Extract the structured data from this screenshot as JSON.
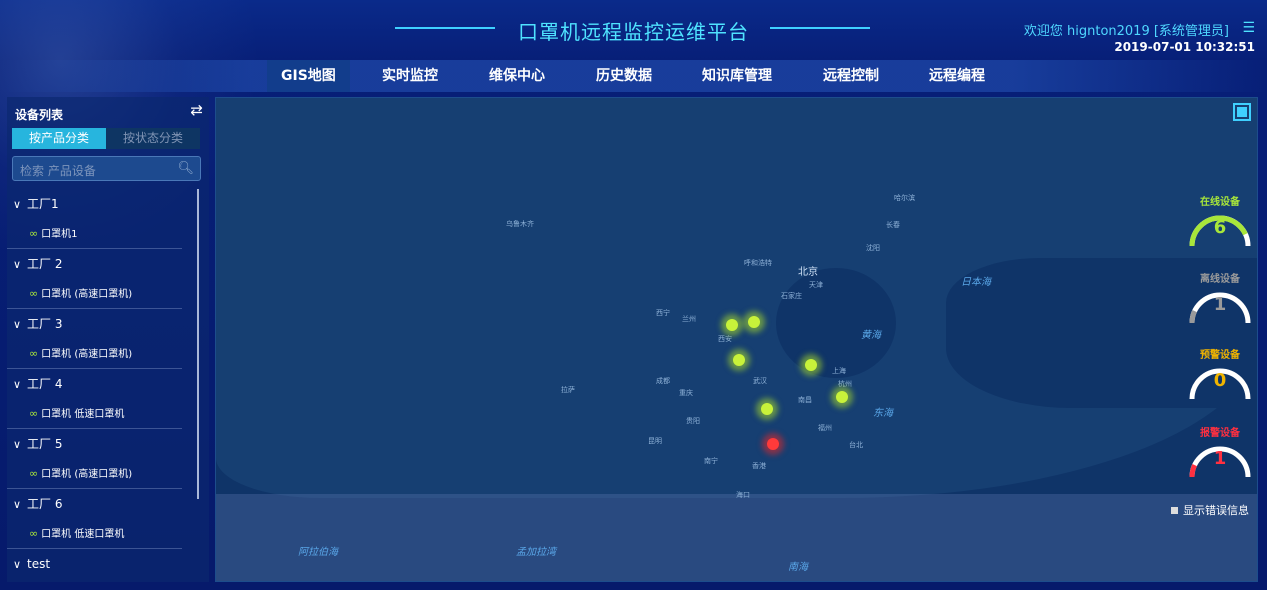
{
  "header": {
    "title": "口罩机远程监控运维平台",
    "welcome": "欢迎您  hignton2019 [系统管理员]",
    "datetime": "2019-07-01 10:32:51"
  },
  "nav": [
    "GIS地图",
    "实时监控",
    "维保中心",
    "历史数据",
    "知识库管理",
    "远程控制",
    "远程编程"
  ],
  "sidebar": {
    "title": "设备列表",
    "tabs": [
      "按产品分类",
      "按状态分类"
    ],
    "search_placeholder": "检索 产品设备",
    "groups": [
      {
        "name": "工厂1",
        "device": "口罩机1"
      },
      {
        "name": "工厂 2",
        "device": "口罩机 (高速口罩机)"
      },
      {
        "name": "工厂 3",
        "device": "口罩机 (高速口罩机)"
      },
      {
        "name": "工厂 4",
        "device": "口罩机 低速口罩机"
      },
      {
        "name": "工厂 5",
        "device": "口罩机 (高速口罩机)"
      },
      {
        "name": "工厂 6",
        "device": "口罩机 低速口罩机"
      },
      {
        "name": "test",
        "device": null
      }
    ]
  },
  "map": {
    "labels": {
      "beijing": "北京",
      "tianjin": "天津",
      "shijiazhuang": "石家庄",
      "huanghai": "黄海",
      "donghai": "东海",
      "ribenhai": "日本海",
      "nanhai": "南海",
      "alabo": "阿拉伯海",
      "mengjiala": "孟加拉湾",
      "wulumuqi": "乌鲁木齐",
      "lanzhou": "兰州",
      "xining": "西宁",
      "xian": "西安",
      "chengdu": "成都",
      "chongqing": "重庆",
      "wuhan": "武汉",
      "hangzhou": "杭州",
      "shanghai": "上海",
      "nanchang": "南昌",
      "guiyang": "贵阳",
      "kunming": "昆明",
      "nanning": "南宁",
      "xianggang": "香港",
      "taibei": "台北",
      "lasa": "拉萨",
      "haerbin": "哈尔滨",
      "changchun": "长春",
      "shenyang": "沈阳",
      "huhehaote": "呼和浩特",
      "fuzhou": "福州",
      "haikou": "海口"
    },
    "show_error_label": "显示错误信息",
    "marker_colors": {
      "online": "#c8f23a",
      "alarm": "#ff3a3a"
    }
  },
  "stats": [
    {
      "label": "在线设备",
      "value": "6",
      "color": "#a8e63a",
      "fraction": 0.86
    },
    {
      "label": "离线设备",
      "value": "1",
      "color": "#9a9a9a",
      "fraction": 0.14
    },
    {
      "label": "预警设备",
      "value": "0",
      "color": "#f0b400",
      "fraction": 0
    },
    {
      "label": "报警设备",
      "value": "1",
      "color": "#ff3040",
      "fraction": 0.14
    }
  ]
}
